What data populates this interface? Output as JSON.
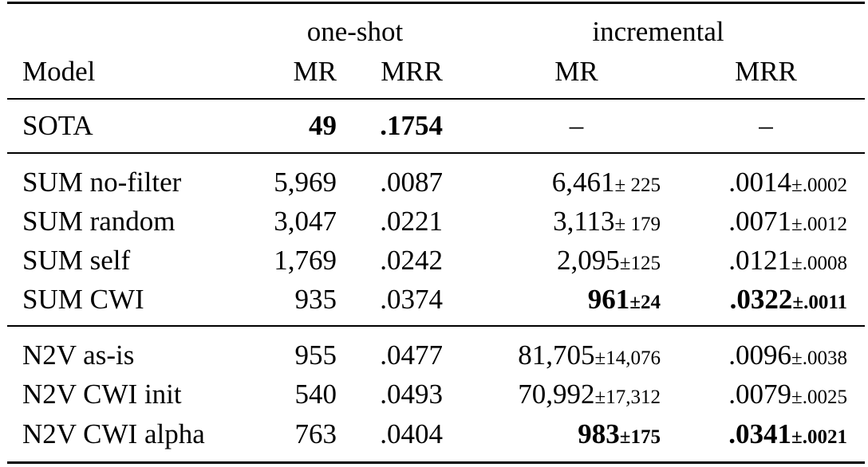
{
  "table": {
    "header": {
      "group_oneshot": "one-shot",
      "group_incremental": "incremental",
      "col_model": "Model",
      "col_mr1": "MR",
      "col_mrr1": "MRR",
      "col_mr2": "MR",
      "col_mrr2": "MRR"
    },
    "sota": {
      "model": "SOTA",
      "mr1": "49",
      "mrr1": ".1754",
      "mr2": "–",
      "mrr2": "–"
    },
    "sum_rows": [
      {
        "model": "SUM no-filter",
        "mr1": "5,969",
        "mrr1": ".0087",
        "mr2": "6,461",
        "mr2_pm": "± 225",
        "mrr2": ".0014",
        "mrr2_pm": "±.0002"
      },
      {
        "model": "SUM random",
        "mr1": "3,047",
        "mrr1": ".0221",
        "mr2": "3,113",
        "mr2_pm": "± 179",
        "mrr2": ".0071",
        "mrr2_pm": "±.0012"
      },
      {
        "model": "SUM self",
        "mr1": "1,769",
        "mrr1": ".0242",
        "mr2": "2,095",
        "mr2_pm": "±125",
        "mrr2": ".0121",
        "mrr2_pm": "±.0008"
      },
      {
        "model": "SUM CWI",
        "mr1": "935",
        "mrr1": ".0374",
        "mr2": "961",
        "mr2_pm": "±24",
        "mrr2": ".0322",
        "mrr2_pm": "±.0011"
      }
    ],
    "n2v_rows": [
      {
        "model": "N2V as-is",
        "mr1": "955",
        "mrr1": ".0477",
        "mr2": "81,705",
        "mr2_pm": "±14,076",
        "mrr2": ".0096",
        "mrr2_pm": "±.0038"
      },
      {
        "model": "N2V CWI init",
        "mr1": "540",
        "mrr1": ".0493",
        "mr2": "70,992",
        "mr2_pm": "±17,312",
        "mrr2": ".0079",
        "mrr2_pm": "±.0025"
      },
      {
        "model": "N2V CWI alpha",
        "mr1": "763",
        "mrr1": ".0404",
        "mr2": "983",
        "mr2_pm": "±175",
        "mrr2": ".0341",
        "mrr2_pm": "±.0021"
      }
    ]
  }
}
